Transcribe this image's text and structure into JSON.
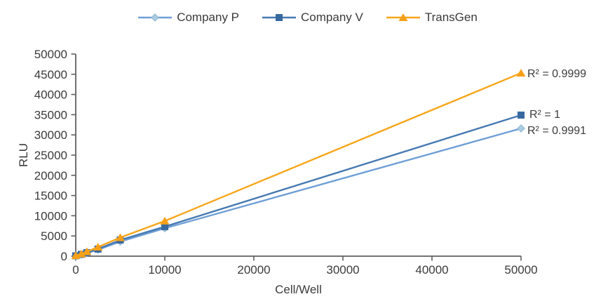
{
  "chart_data": {
    "type": "line",
    "title": "",
    "xlabel": "Cell/Well",
    "ylabel": "RLU",
    "xlim": [
      0,
      50000
    ],
    "ylim": [
      0,
      50000
    ],
    "x_ticks": [
      0,
      10000,
      20000,
      30000,
      40000,
      50000
    ],
    "y_ticks": [
      0,
      5000,
      10000,
      15000,
      20000,
      25000,
      30000,
      35000,
      40000,
      45000,
      50000
    ],
    "grid": false,
    "legend_position": "top",
    "x": [
      0,
      625,
      1250,
      2500,
      5000,
      10000,
      50000
    ],
    "series": [
      {
        "name": "Company P",
        "marker": "diamond",
        "line_color": "#6f9fd6",
        "marker_color": "#a9cce0",
        "marker_stroke": "#8fb8d4",
        "values": [
          80,
          400,
          790,
          1580,
          3600,
          6900,
          31600
        ],
        "r2_label": "R² = 0.9991",
        "r2": 0.9991
      },
      {
        "name": "Company V",
        "marker": "square",
        "line_color": "#4679b2",
        "marker_color": "#38699f",
        "marker_stroke": "#38699f",
        "values": [
          100,
          450,
          880,
          1750,
          4000,
          7300,
          34900
        ],
        "r2_label": "R² = 1",
        "r2": 1
      },
      {
        "name": "TransGen",
        "marker": "triangle",
        "line_color": "#f7a61a",
        "marker_color": "#f6a019",
        "marker_stroke": "#f6a019",
        "values": [
          150,
          560,
          1120,
          2250,
          4600,
          8700,
          45300
        ],
        "r2_label": "R² = 0.9999",
        "r2": 0.9999
      }
    ],
    "axis_color": "#606060",
    "text_color": "#3b3b3b"
  }
}
